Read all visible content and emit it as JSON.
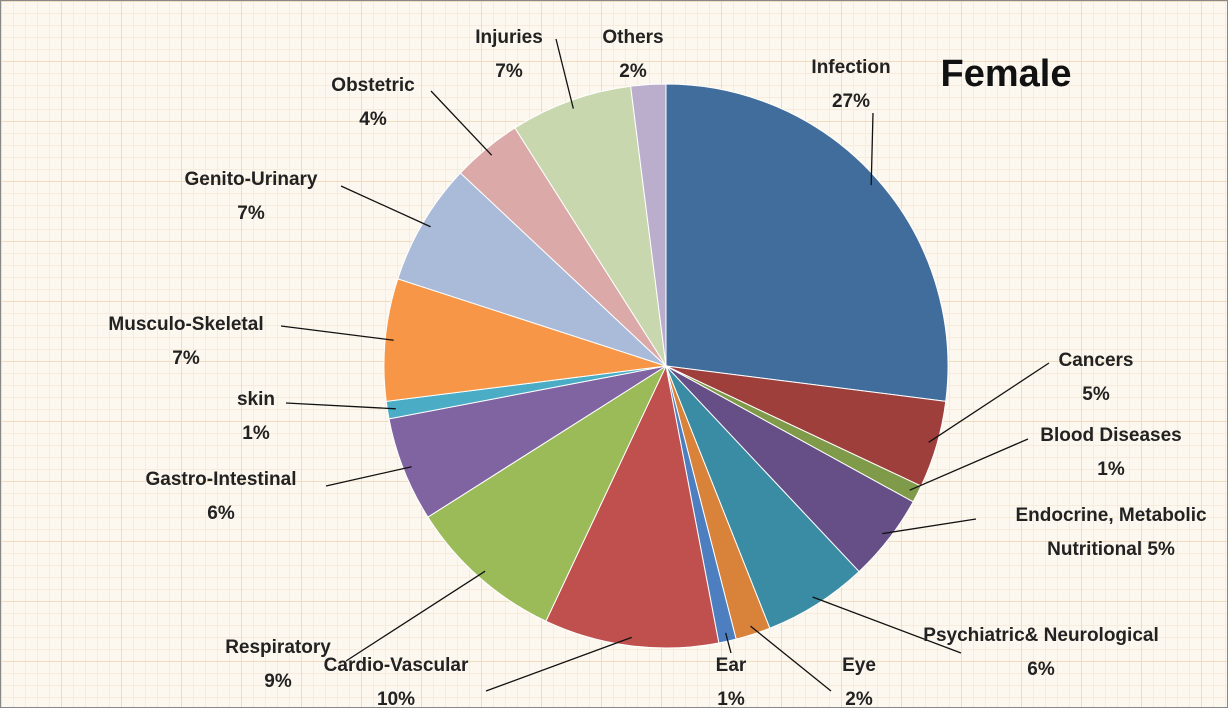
{
  "chart_data": {
    "type": "pie",
    "title": "Female",
    "categories": [
      "Infection",
      "Cancers",
      "Blood Diseases",
      "Endocrine, Metabolic Nutritional",
      "Psychiatric& Neurological",
      "Eye",
      "Ear",
      "Cardio-Vascular",
      "Respiratory",
      "Gastro-Intestinal",
      "skin",
      "Musculo-Skeletal",
      "Genito-Urinary",
      "Obstetric",
      "Injuries",
      "Others"
    ],
    "values": [
      27,
      5,
      1,
      5,
      6,
      2,
      1,
      10,
      9,
      6,
      1,
      7,
      7,
      4,
      7,
      2
    ],
    "value_labels": [
      "27%",
      "5%",
      "1%",
      "5%",
      "6%",
      "2%",
      "1%",
      "10%",
      "9%",
      "6%",
      "1%",
      "7%",
      "7%",
      "4%",
      "7%",
      "2%"
    ],
    "colors": [
      "#416d9c",
      "#9e3f3c",
      "#7f9a48",
      "#664f86",
      "#3a8ca5",
      "#d8823a",
      "#4d7fc0",
      "#c0504d",
      "#9bbb59",
      "#8064a2",
      "#4bacc6",
      "#f79646",
      "#a9bbd9",
      "#dba9a8",
      "#c8d7ae",
      "#bbadcc"
    ]
  }
}
